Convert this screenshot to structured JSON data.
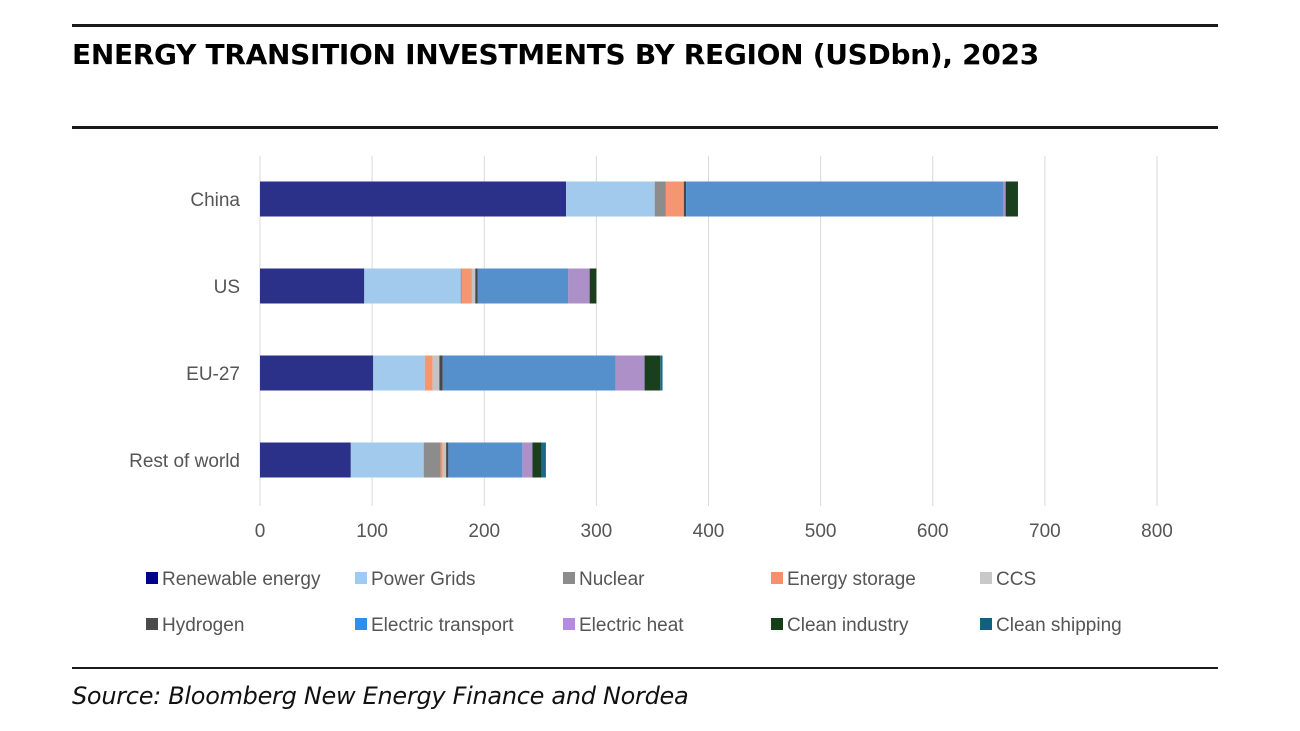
{
  "title": "ENERGY TRANSITION INVESTMENTS BY REGION (USDbn), 2023",
  "source": "Source: Bloomberg New Energy Finance and Nordea",
  "chart_data": {
    "type": "bar",
    "orientation": "horizontal",
    "stacked": true,
    "title": "ENERGY TRANSITION INVESTMENTS BY REGION (USDbn), 2023",
    "xlabel": "",
    "ylabel": "",
    "xlim": [
      0,
      800
    ],
    "xticks": [
      0,
      100,
      200,
      300,
      400,
      500,
      600,
      700,
      800
    ],
    "grid": true,
    "legend_position": "bottom",
    "categories": [
      "China",
      "US",
      "EU-27",
      "Rest of world"
    ],
    "series": [
      {
        "name": "Renewable energy",
        "color": "#2b3188",
        "legend_color": "#00008b",
        "values": [
          273,
          93,
          101,
          81
        ]
      },
      {
        "name": "Power Grids",
        "color": "#a2caec",
        "legend_color": "#9ecbf5",
        "values": [
          79,
          86,
          46,
          65
        ]
      },
      {
        "name": "Nuclear",
        "color": "#8c8c8c",
        "legend_color": "#8c8c8c",
        "values": [
          10,
          1,
          0,
          15
        ]
      },
      {
        "name": "Energy storage",
        "color": "#f4966f",
        "legend_color": "#f7906a",
        "values": [
          16,
          9,
          7,
          2
        ]
      },
      {
        "name": "CCS",
        "color": "#c4c4c4",
        "legend_color": "#c8c8c8",
        "values": [
          0,
          3,
          6,
          3
        ]
      },
      {
        "name": "Hydrogen",
        "color": "#474747",
        "legend_color": "#4a4a4a",
        "values": [
          2,
          2,
          3,
          2
        ]
      },
      {
        "name": "Electric transport",
        "color": "#558fcc",
        "legend_color": "#2b8ff0",
        "values": [
          283,
          81,
          154,
          66
        ]
      },
      {
        "name": "Electric heat",
        "color": "#ad90c8",
        "legend_color": "#b58be0",
        "values": [
          2,
          19,
          26,
          9
        ]
      },
      {
        "name": "Clean industry",
        "color": "#1a3f1e",
        "legend_color": "#173f17",
        "values": [
          11,
          6,
          14,
          8
        ]
      },
      {
        "name": "Clean shipping",
        "color": "#196a8a",
        "legend_color": "#13607e",
        "values": [
          0,
          0,
          2,
          4
        ]
      }
    ]
  }
}
